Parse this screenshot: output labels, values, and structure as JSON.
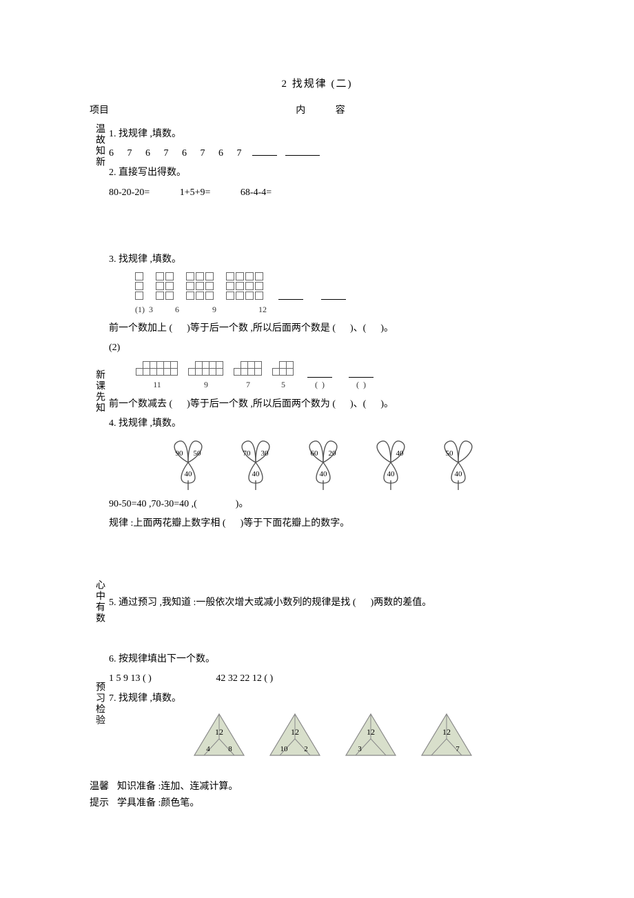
{
  "title": "2   找规律 (二)",
  "header": {
    "left": "项目",
    "right": "内     容"
  },
  "sideLabels": {
    "s1": "温故知新",
    "s2": "新课先知",
    "s3": "心中有数",
    "s4": "预习检验"
  },
  "q1": {
    "title": "1. 找规律 ,填数。",
    "seq": "6  7  6  7  6  7  6  7"
  },
  "q2": {
    "title": "2. 直接写出得数。",
    "a": "80-20-20=",
    "b": "1+5+9=",
    "c": "68-4-4="
  },
  "q3": {
    "title": "3. 找规律 ,填数。",
    "p1prefix": "(1)",
    "p1nums": [
      "3",
      "6",
      "9",
      "12"
    ],
    "p1text_a": "前一个数加上 (",
    "p1text_b": ")等于后一个数  ,所以后面两个数是  (",
    "p1text_c": ")、(",
    "p1text_d": ")。",
    "p2prefix": "(2)",
    "p2nums": [
      "11",
      "9",
      "7",
      "5"
    ],
    "p2paren": "(   )   (   )",
    "p2text_a": "前一个数减去 (",
    "p2text_b": ")等于后一个数  ,所以后面两个数为  (",
    "p2text_c": ")、(",
    "p2text_d": ")。"
  },
  "q4": {
    "title": "4. 找规律 ,填数。",
    "clovers": [
      {
        "l": "90",
        "r": "50",
        "b": "40"
      },
      {
        "l": "70",
        "r": "30",
        "b": "40"
      },
      {
        "l": "60",
        "r": "20",
        "b": "40"
      },
      {
        "l": "",
        "r": "40",
        "b": "40"
      },
      {
        "l": "50",
        "r": "",
        "b": "40"
      }
    ],
    "line1_a": "90-50=40 ,70-30=40 ,(",
    "line1_b": ")。",
    "line2_a": "规律 :上面两花瓣上数字相  (",
    "line2_b": ")等于下面花瓣上的数字。"
  },
  "q5": {
    "text_a": "5. 通过预习 ,我知道 :一般依次增大或减小数列的规律是找    (",
    "text_b": ")两数的差值。"
  },
  "q6": {
    "title": "6. 按规律填出下一个数。",
    "seq1": "1   5   9   13   (       )",
    "seq2": "42   32   22   12   (       )"
  },
  "q7": {
    "title": "7. 找规律 ,填数。",
    "triangles": [
      {
        "t": "12",
        "l": "4",
        "r": "8"
      },
      {
        "t": "12",
        "l": "10",
        "r": "2"
      },
      {
        "t": "12",
        "l": "3",
        "r": ""
      },
      {
        "t": "12",
        "l": "",
        "r": "7"
      }
    ]
  },
  "footer": {
    "l1": "温馨",
    "l2": "提示",
    "r1": "知识准备 :连加、连减计算。",
    "r2": "学具准备 :颜色笔。"
  },
  "colors": {
    "text": "#000000",
    "border": "#666666",
    "cloverStroke": "#555555",
    "triFill": "#d8dfcb",
    "triStroke": "#888888"
  }
}
